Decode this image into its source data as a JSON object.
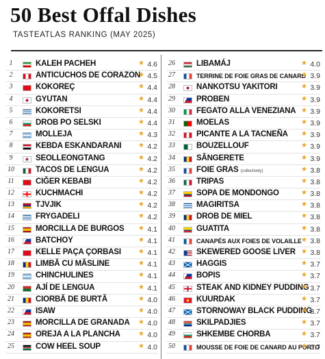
{
  "header": {
    "title": "50 Best Offal Dishes",
    "subtitle": "TASTEATLAS RANKING (MAY 2025)"
  },
  "star_glyph": "★",
  "dishes": [
    {
      "rank": "1",
      "name": "KALEH PACHEH",
      "rating": "4.6",
      "flag": "linear-gradient(#239f40 33%, #ffffff 33% 66%, #da0000 66%)"
    },
    {
      "rank": "2",
      "name": "ANTICUCHOS DE CORAZON",
      "rating": "4.5",
      "flag": "linear-gradient(90deg,#d91023 33%, #ffffff 33% 66%, #d91023 66%)"
    },
    {
      "rank": "3",
      "name": "KOKOREÇ",
      "rating": "4.4",
      "flag": "#e30a17"
    },
    {
      "rank": "4",
      "name": "GYUTAN",
      "rating": "4.4",
      "flag": "radial-gradient(circle, #bc002d 28%, #ffffff 30%)"
    },
    {
      "rank": "5",
      "name": "KOKORETSI",
      "rating": "4.4",
      "flag": "repeating-linear-gradient(#0d5eaf 0 1.2px, #ffffff 1.2px 2.4px)"
    },
    {
      "rank": "6",
      "name": "DROB PO SELSKI",
      "rating": "4.4",
      "flag": "linear-gradient(#ffffff 33%, #00966e 33% 66%, #d62612 66%)"
    },
    {
      "rank": "7",
      "name": "MOLLEJA",
      "rating": "4.3",
      "flag": "linear-gradient(#74acdf 33%, #ffffff 33% 66%, #74acdf 66%)"
    },
    {
      "rank": "8",
      "name": "KEBDA ESKANDARANI",
      "rating": "4.2",
      "flag": "linear-gradient(#ce1126 33%, #ffffff 33% 66%, #000000 66%)"
    },
    {
      "rank": "9",
      "name": "SEOLLEONGTANG",
      "rating": "4.2",
      "flag": "radial-gradient(circle, #cd2e3a 22%, #0047a0 30%, #ffffff 32%)"
    },
    {
      "rank": "10",
      "name": "TACOS DE LENGUA",
      "rating": "4.2",
      "flag": "linear-gradient(90deg,#006847 33%, #ffffff 33% 66%, #ce1126 66%)"
    },
    {
      "rank": "11",
      "name": "CIĞER KEBABI",
      "rating": "4.2",
      "flag": "#e30a17"
    },
    {
      "rank": "12",
      "name": "KUCHMACHI",
      "rating": "4.2",
      "flag": "linear-gradient(90deg, transparent 42%, #ff0000 42% 58%, transparent 58%), linear-gradient(transparent 38%, #ff0000 38% 62%, transparent 62%), #ffffff"
    },
    {
      "rank": "13",
      "name": "TJVJIK",
      "rating": "4.2",
      "flag": "linear-gradient(#d90012 33%, #0033a0 33% 66%, #f2a800 66%)"
    },
    {
      "rank": "14",
      "name": "FRYGADELI",
      "rating": "4.2",
      "flag": "repeating-linear-gradient(#0d5eaf 0 1.2px, #ffffff 1.2px 2.4px)"
    },
    {
      "rank": "15",
      "name": "MORCILLA DE BURGOS",
      "rating": "4.1",
      "flag": "linear-gradient(#aa151b 25%, #f1bf00 25% 75%, #aa151b 75%)"
    },
    {
      "rank": "16",
      "name": "BATCHOY",
      "rating": "4.1",
      "flag": "linear-gradient(120deg, #ffffff 30%, transparent 30%), linear-gradient(#0038a8 50%, #ce1126 50%)"
    },
    {
      "rank": "17",
      "name": "KELLE PAÇA ÇORBASI",
      "rating": "4.1",
      "flag": "#e30a17"
    },
    {
      "rank": "18",
      "name": "LIMBĂ CU MĂSLINE",
      "rating": "4.1",
      "flag": "linear-gradient(90deg,#002b7f 33%, #fcd116 33% 66%, #ce1126 66%)"
    },
    {
      "rank": "19",
      "name": "CHINCHULINES",
      "rating": "4.1",
      "flag": "linear-gradient(#74acdf 33%, #ffffff 33% 66%, #74acdf 66%)"
    },
    {
      "rank": "20",
      "name": "AJÍ DE LENGUA",
      "rating": "4.1",
      "flag": "linear-gradient(#d52b1e 50%, #007934 50%)"
    },
    {
      "rank": "21",
      "name": "CIORBĂ DE BURTĂ",
      "rating": "4.0",
      "flag": "linear-gradient(90deg,#002b7f 33%, #fcd116 33% 66%, #ce1126 66%)"
    },
    {
      "rank": "22",
      "name": "ISAW",
      "rating": "4.0",
      "flag": "linear-gradient(120deg, #ffffff 30%, transparent 30%), linear-gradient(#0038a8 50%, #ce1126 50%)"
    },
    {
      "rank": "23",
      "name": "MORCILLA DE GRANADA",
      "rating": "4.0",
      "flag": "linear-gradient(#aa151b 25%, #f1bf00 25% 75%, #aa151b 75%)"
    },
    {
      "rank": "24",
      "name": "OREJA A LA PLANCHA",
      "rating": "4.0",
      "flag": "linear-gradient(#aa151b 25%, #f1bf00 25% 75%, #aa151b 75%)"
    },
    {
      "rank": "25",
      "name": "COW HEEL SOUP",
      "rating": "4.0",
      "flag": "linear-gradient(#000000 38%, #ffffff 38% 43%, #ce1126 43% 57%, #ffffff 57% 62%, #006b3f 62%)"
    },
    {
      "rank": "26",
      "name": "LIBAMÁJ",
      "rating": "4.0",
      "flag": "linear-gradient(#ce2939 33%, #ffffff 33% 66%, #477050 66%)"
    },
    {
      "rank": "27",
      "name": "TERRINE DE FOIE GRAS DE CANARD",
      "rating": "3.9",
      "flag": "linear-gradient(90deg,#0055a4 33%, #ffffff 33% 66%, #ef4135 66%)",
      "small": true
    },
    {
      "rank": "28",
      "name": "NANKOTSU YAKITORI",
      "rating": "3.9",
      "flag": "radial-gradient(circle, #bc002d 28%, #ffffff 30%)"
    },
    {
      "rank": "29",
      "name": "PROBEN",
      "rating": "3.9",
      "flag": "linear-gradient(120deg, #ffffff 30%, transparent 30%), linear-gradient(#0038a8 50%, #ce1126 50%)"
    },
    {
      "rank": "30",
      "name": "FEGATO ALLA VENEZIANA",
      "rating": "3.9",
      "flag": "linear-gradient(90deg,#009246 33%, #ffffff 33% 66%, #ce2b37 66%)"
    },
    {
      "rank": "31",
      "name": "MOELAS",
      "rating": "3.9",
      "flag": "linear-gradient(90deg,#006600 40%, #ff0000 40%)"
    },
    {
      "rank": "32",
      "name": "PICANTE A LA TACNEÑA",
      "rating": "3.9",
      "flag": "linear-gradient(90deg,#d91023 33%, #ffffff 33% 66%, #d91023 66%)"
    },
    {
      "rank": "33",
      "name": "BOUZELLOUF",
      "rating": "3.9",
      "flag": "linear-gradient(90deg,#006233 50%, #ffffff 50%)"
    },
    {
      "rank": "34",
      "name": "SÂNGERETE",
      "rating": "3.9",
      "flag": "linear-gradient(90deg,#002b7f 33%, #fcd116 33% 66%, #ce1126 66%)"
    },
    {
      "rank": "35",
      "name": "FOIE GRAS",
      "rating": "3.8",
      "note": "(collectively)",
      "flag": "linear-gradient(90deg,#0055a4 33%, #ffffff 33% 66%, #ef4135 66%)"
    },
    {
      "rank": "36",
      "name": "TRIPAS",
      "rating": "3.8",
      "flag": "linear-gradient(90deg,#006847 33%, #ffffff 33% 66%, #ce1126 66%)"
    },
    {
      "rank": "37",
      "name": "SOPA DE MONDONGO",
      "rating": "3.8",
      "flag": "linear-gradient(#ffcd00 50%, #003087 50% 75%, #c8102e 75%)"
    },
    {
      "rank": "38",
      "name": "MAGIRITSA",
      "rating": "3.8",
      "flag": "repeating-linear-gradient(#0d5eaf 0 1.2px, #ffffff 1.2px 2.4px)"
    },
    {
      "rank": "39",
      "name": "DROB DE MIEL",
      "rating": "3.8",
      "flag": "linear-gradient(90deg,#002b7f 33%, #fcd116 33% 66%, #ce1126 66%)"
    },
    {
      "rank": "40",
      "name": "GUATITA",
      "rating": "3.8",
      "flag": "linear-gradient(#ffdd00 50%, #034ea2 50% 75%, #ed1c24 75%)"
    },
    {
      "rank": "41",
      "name": "CANAPÉS AUX FOIES DE VOLAILLE",
      "rating": "3.8",
      "flag": "linear-gradient(90deg,#0055a4 33%, #ffffff 33% 66%, #ef4135 66%)",
      "small": true
    },
    {
      "rank": "42",
      "name": "SKEWERED GOOSE LIVER",
      "rating": "3.8",
      "flag": "linear-gradient(90deg,#0d3d8c 40%, transparent 40%), repeating-linear-gradient(#b22234 0 1px, #ffffff 1px 2px)"
    },
    {
      "rank": "43",
      "name": "HAGGIS",
      "rating": "3.7",
      "flag": "linear-gradient(33deg, transparent 46%, #ffffff 46% 54%, transparent 54%), linear-gradient(-33deg, transparent 46%, #ffffff 46% 54%, transparent 54%), #005eb8"
    },
    {
      "rank": "44",
      "name": "BOPIS",
      "rating": "3.7",
      "flag": "linear-gradient(120deg, #ffffff 30%, transparent 30%), linear-gradient(#0038a8 50%, #ce1126 50%)"
    },
    {
      "rank": "45",
      "name": "STEAK AND KIDNEY PUDDING",
      "rating": "3.7",
      "flag": "linear-gradient(90deg, transparent 42%, #ce1124 42% 58%, transparent 58%), linear-gradient(transparent 38%, #ce1124 38% 62%, transparent 62%), #ffffff"
    },
    {
      "rank": "46",
      "name": "KUURDAK",
      "rating": "3.7",
      "flag": "radial-gradient(circle, #ffef00 25%, #e8112d 30%)"
    },
    {
      "rank": "47",
      "name": "STORNOWAY BLACK PUDDING",
      "rating": "3.7",
      "flag": "linear-gradient(33deg, transparent 46%, #ffffff 46% 54%, transparent 54%), linear-gradient(-33deg, transparent 46%, #ffffff 46% 54%, transparent 54%), #005eb8"
    },
    {
      "rank": "48",
      "name": "SKILPADJIES",
      "rating": "3.7",
      "flag": "linear-gradient(#de3831 33%, #ffffff 33% 40%, #007a4d 40% 60%, #ffffff 60% 66%, #002395 66%)"
    },
    {
      "rank": "49",
      "name": "SHKEMBE CHORBA",
      "rating": "3.7",
      "flag": "linear-gradient(#ffffff 33%, #00966e 33% 66%, #d62612 66%)"
    },
    {
      "rank": "50",
      "name": "MOUSSE DE FOIE DE CANARD AU PORTO",
      "rating": "3.7",
      "flag": "linear-gradient(90deg,#0055a4 33%, #ffffff 33% 66%, #ef4135 66%)",
      "small": true
    }
  ]
}
